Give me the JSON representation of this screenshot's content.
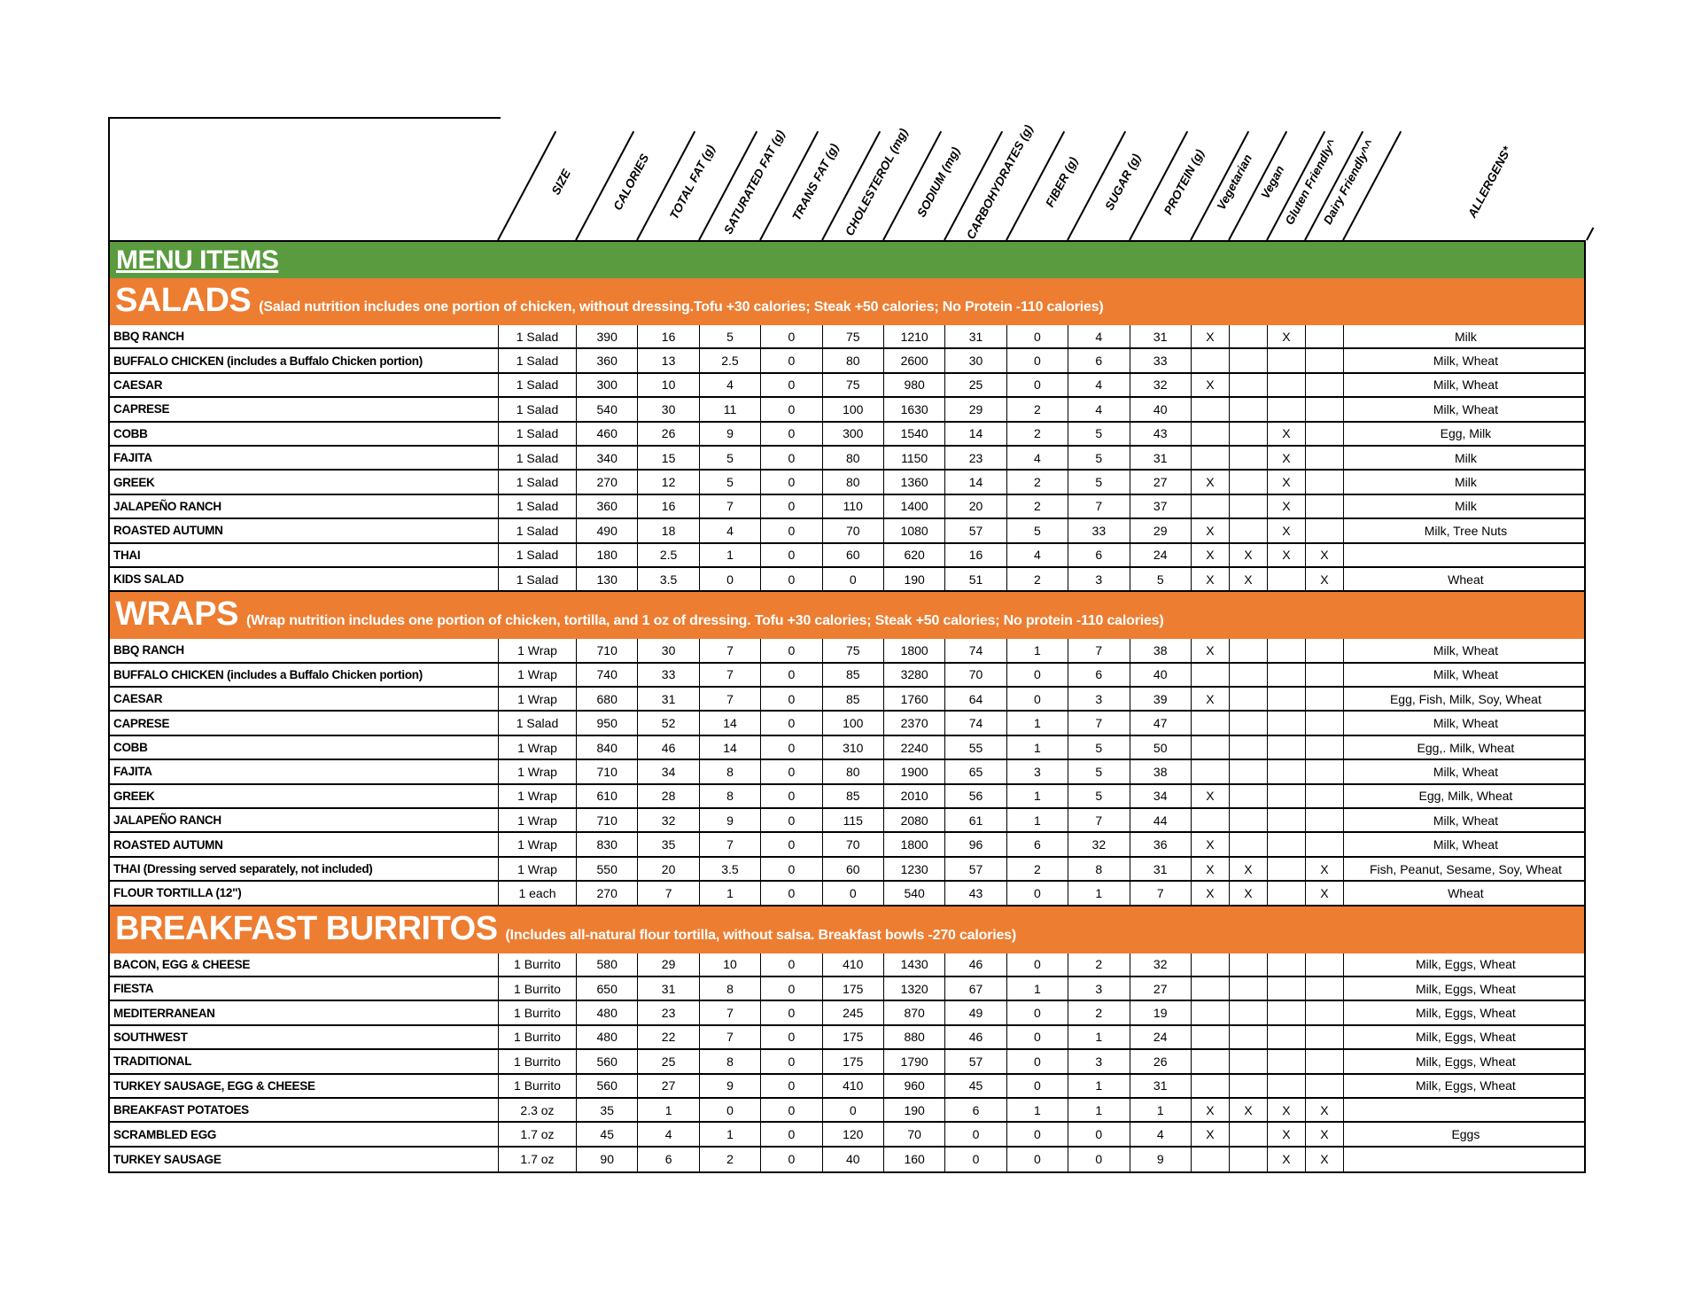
{
  "menu_title": "MENU ITEMS",
  "columns": [
    "SIZE",
    "CALORIES",
    "TOTAL FAT (g)",
    "SATURATED FAT (g)",
    "TRANS FAT (g)",
    "CHOLESTEROL (mg)",
    "SODIUM (mg)",
    "CARBOHYDRATES (g)",
    "FIBER (g)",
    "SUGAR (g)",
    "PROTEIN (g)",
    "Vegetarian",
    "Vegan",
    "Gluten Friendly^",
    "Dairy Friendly^^",
    "ALLERGENS*"
  ],
  "colors": {
    "green_bar": "#599B3E",
    "orange_bar": "#ED7D31",
    "border": "#000000",
    "text": "#000000",
    "bar_text": "#FFFFFF"
  },
  "sections": [
    {
      "title": "SALADS",
      "subtitle": "(Salad nutrition includes one portion of chicken, without dressing.Tofu +30 calories; Steak +50 calories; No Protein -110 calories)",
      "rows": [
        [
          "BBQ RANCH",
          "1 Salad",
          "390",
          "16",
          "5",
          "0",
          "75",
          "1210",
          "31",
          "0",
          "4",
          "31",
          "X",
          "",
          "X",
          "",
          "Milk"
        ],
        [
          "BUFFALO CHICKEN (includes a Buffalo Chicken portion)",
          "1 Salad",
          "360",
          "13",
          "2.5",
          "0",
          "80",
          "2600",
          "30",
          "0",
          "6",
          "33",
          "",
          "",
          "",
          "",
          "Milk, Wheat"
        ],
        [
          "CAESAR",
          "1 Salad",
          "300",
          "10",
          "4",
          "0",
          "75",
          "980",
          "25",
          "0",
          "4",
          "32",
          "X",
          "",
          "",
          "",
          "Milk, Wheat"
        ],
        [
          "CAPRESE",
          "1 Salad",
          "540",
          "30",
          "11",
          "0",
          "100",
          "1630",
          "29",
          "2",
          "4",
          "40",
          "",
          "",
          "",
          "",
          "Milk, Wheat"
        ],
        [
          "COBB",
          "1 Salad",
          "460",
          "26",
          "9",
          "0",
          "300",
          "1540",
          "14",
          "2",
          "5",
          "43",
          "",
          "",
          "X",
          "",
          "Egg, Milk"
        ],
        [
          "FAJITA",
          "1 Salad",
          "340",
          "15",
          "5",
          "0",
          "80",
          "1150",
          "23",
          "4",
          "5",
          "31",
          "",
          "",
          "X",
          "",
          "Milk"
        ],
        [
          "GREEK",
          "1 Salad",
          "270",
          "12",
          "5",
          "0",
          "80",
          "1360",
          "14",
          "2",
          "5",
          "27",
          "X",
          "",
          "X",
          "",
          "Milk"
        ],
        [
          "JALAPEÑO RANCH",
          "1 Salad",
          "360",
          "16",
          "7",
          "0",
          "110",
          "1400",
          "20",
          "2",
          "7",
          "37",
          "",
          "",
          "X",
          "",
          "Milk"
        ],
        [
          "ROASTED AUTUMN",
          "1 Salad",
          "490",
          "18",
          "4",
          "0",
          "70",
          "1080",
          "57",
          "5",
          "33",
          "29",
          "X",
          "",
          "X",
          "",
          "Milk, Tree Nuts"
        ],
        [
          "THAI",
          "1 Salad",
          "180",
          "2.5",
          "1",
          "0",
          "60",
          "620",
          "16",
          "4",
          "6",
          "24",
          "X",
          "X",
          "X",
          "X",
          ""
        ],
        [
          "KIDS SALAD",
          "1 Salad",
          "130",
          "3.5",
          "0",
          "0",
          "0",
          "190",
          "51",
          "2",
          "3",
          "5",
          "X",
          "X",
          "",
          "X",
          "Wheat"
        ]
      ]
    },
    {
      "title": "WRAPS",
      "subtitle": "(Wrap nutrition includes one portion of chicken, tortilla, and 1 oz of dressing. Tofu +30 calories; Steak +50 calories; No protein -110 calories)",
      "rows": [
        [
          "BBQ RANCH",
          "1 Wrap",
          "710",
          "30",
          "7",
          "0",
          "75",
          "1800",
          "74",
          "1",
          "7",
          "38",
          "X",
          "",
          "",
          "",
          "Milk, Wheat"
        ],
        [
          "BUFFALO CHICKEN (includes a Buffalo Chicken portion)",
          "1 Wrap",
          "740",
          "33",
          "7",
          "0",
          "85",
          "3280",
          "70",
          "0",
          "6",
          "40",
          "",
          "",
          "",
          "",
          "Milk, Wheat"
        ],
        [
          "CAESAR",
          "1 Wrap",
          "680",
          "31",
          "7",
          "0",
          "85",
          "1760",
          "64",
          "0",
          "3",
          "39",
          "X",
          "",
          "",
          "",
          "Egg, Fish, Milk, Soy, Wheat"
        ],
        [
          "CAPRESE",
          "1 Salad",
          "950",
          "52",
          "14",
          "0",
          "100",
          "2370",
          "74",
          "1",
          "7",
          "47",
          "",
          "",
          "",
          "",
          "Milk, Wheat"
        ],
        [
          "COBB",
          "1 Wrap",
          "840",
          "46",
          "14",
          "0",
          "310",
          "2240",
          "55",
          "1",
          "5",
          "50",
          "",
          "",
          "",
          "",
          "Egg,. Milk, Wheat"
        ],
        [
          "FAJITA",
          "1 Wrap",
          "710",
          "34",
          "8",
          "0",
          "80",
          "1900",
          "65",
          "3",
          "5",
          "38",
          "",
          "",
          "",
          "",
          "Milk, Wheat"
        ],
        [
          "GREEK",
          "1 Wrap",
          "610",
          "28",
          "8",
          "0",
          "85",
          "2010",
          "56",
          "1",
          "5",
          "34",
          "X",
          "",
          "",
          "",
          "Egg, Milk, Wheat"
        ],
        [
          "JALAPEÑO RANCH",
          "1 Wrap",
          "710",
          "32",
          "9",
          "0",
          "115",
          "2080",
          "61",
          "1",
          "7",
          "44",
          "",
          "",
          "",
          "",
          "Milk, Wheat"
        ],
        [
          "ROASTED AUTUMN",
          "1 Wrap",
          "830",
          "35",
          "7",
          "0",
          "70",
          "1800",
          "96",
          "6",
          "32",
          "36",
          "X",
          "",
          "",
          "",
          "Milk, Wheat"
        ],
        [
          "THAI (Dressing served separately, not included)",
          "1 Wrap",
          "550",
          "20",
          "3.5",
          "0",
          "60",
          "1230",
          "57",
          "2",
          "8",
          "31",
          "X",
          "X",
          "",
          "X",
          "Fish, Peanut, Sesame, Soy, Wheat"
        ],
        [
          "FLOUR TORTILLA (12\")",
          "1 each",
          "270",
          "7",
          "1",
          "0",
          "0",
          "540",
          "43",
          "0",
          "1",
          "7",
          "X",
          "X",
          "",
          "X",
          "Wheat"
        ]
      ]
    },
    {
      "title": "BREAKFAST BURRITOS",
      "subtitle": "(Includes all-natural flour tortilla, without salsa. Breakfast bowls -270 calories)",
      "rows": [
        [
          "BACON, EGG & CHEESE",
          "1 Burrito",
          "580",
          "29",
          "10",
          "0",
          "410",
          "1430",
          "46",
          "0",
          "2",
          "32",
          "",
          "",
          "",
          "",
          "Milk, Eggs, Wheat"
        ],
        [
          "FIESTA",
          "1 Burrito",
          "650",
          "31",
          "8",
          "0",
          "175",
          "1320",
          "67",
          "1",
          "3",
          "27",
          "",
          "",
          "",
          "",
          "Milk, Eggs, Wheat"
        ],
        [
          "MEDITERRANEAN",
          "1 Burrito",
          "480",
          "23",
          "7",
          "0",
          "245",
          "870",
          "49",
          "0",
          "2",
          "19",
          "",
          "",
          "",
          "",
          "Milk, Eggs, Wheat"
        ],
        [
          "SOUTHWEST",
          "1 Burrito",
          "480",
          "22",
          "7",
          "0",
          "175",
          "880",
          "46",
          "0",
          "1",
          "24",
          "",
          "",
          "",
          "",
          "Milk, Eggs, Wheat"
        ],
        [
          "TRADITIONAL",
          "1 Burrito",
          "560",
          "25",
          "8",
          "0",
          "175",
          "1790",
          "57",
          "0",
          "3",
          "26",
          "",
          "",
          "",
          "",
          "Milk, Eggs, Wheat"
        ],
        [
          "TURKEY SAUSAGE, EGG & CHEESE",
          "1 Burrito",
          "560",
          "27",
          "9",
          "0",
          "410",
          "960",
          "45",
          "0",
          "1",
          "31",
          "",
          "",
          "",
          "",
          "Milk, Eggs, Wheat"
        ],
        [
          "BREAKFAST POTATOES",
          "2.3 oz",
          "35",
          "1",
          "0",
          "0",
          "0",
          "190",
          "6",
          "1",
          "1",
          "1",
          "X",
          "X",
          "X",
          "X",
          ""
        ],
        [
          "SCRAMBLED EGG",
          "1.7 oz",
          "45",
          "4",
          "1",
          "0",
          "120",
          "70",
          "0",
          "0",
          "0",
          "4",
          "X",
          "",
          "X",
          "X",
          "Eggs"
        ],
        [
          "TURKEY SAUSAGE",
          "1.7 oz",
          "90",
          "6",
          "2",
          "0",
          "40",
          "160",
          "0",
          "0",
          "0",
          "9",
          "",
          "",
          "X",
          "X",
          ""
        ]
      ]
    }
  ]
}
